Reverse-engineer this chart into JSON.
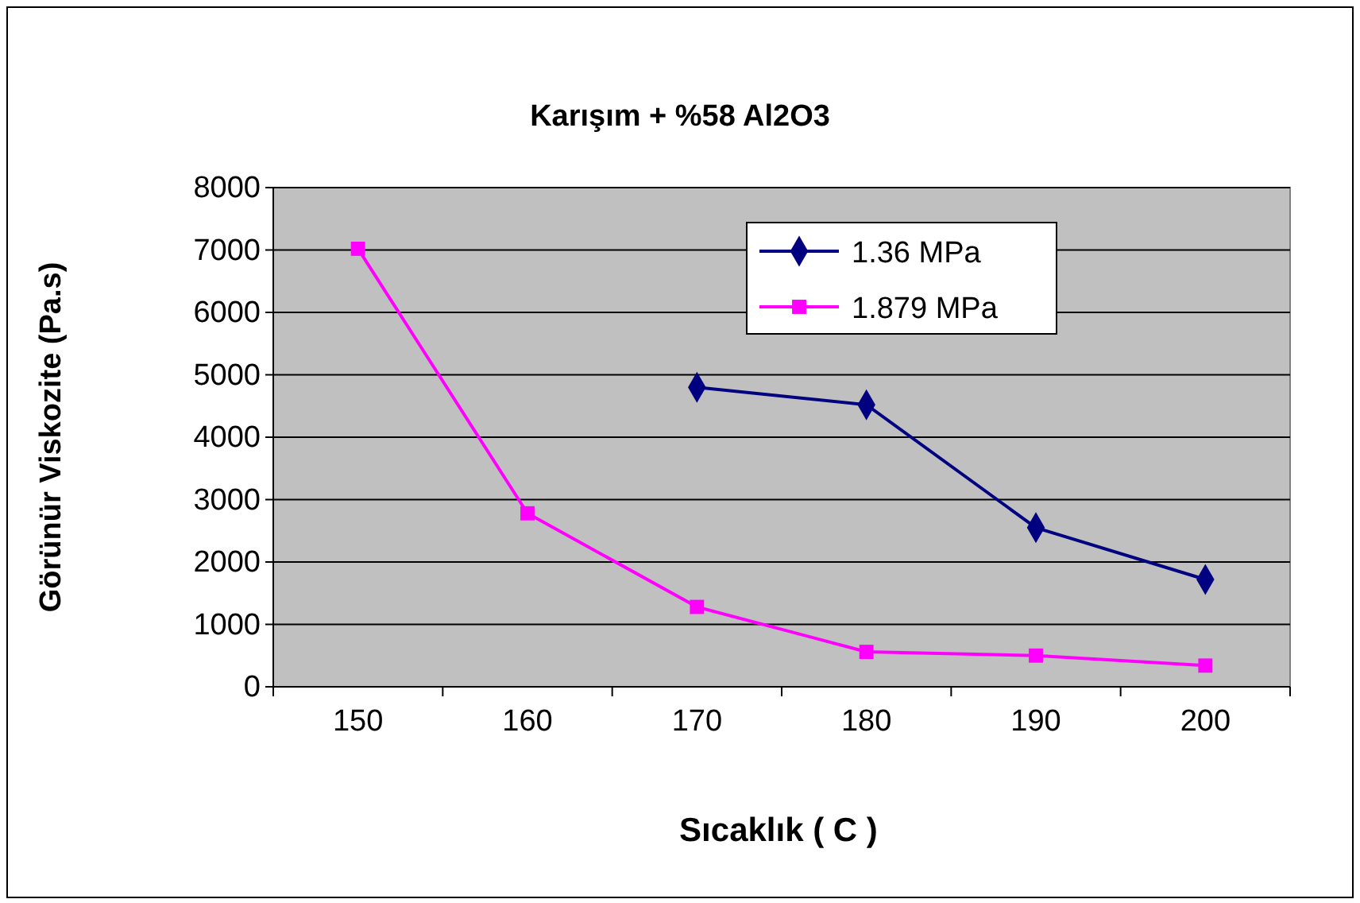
{
  "chart_data": {
    "type": "line",
    "title": "Karışım + %58 Al2O3",
    "xlabel": "Sıcaklık ( C )",
    "ylabel": "Görünür Viskozite (Pa.s)",
    "categories": [
      "150",
      "160",
      "170",
      "180",
      "190",
      "200"
    ],
    "series": [
      {
        "name": "1.36 MPa",
        "color": "#000080",
        "marker": "diamond",
        "values": [
          null,
          null,
          4800,
          4520,
          2550,
          1720
        ]
      },
      {
        "name": "1.879 MPa",
        "color": "#ff00ff",
        "marker": "square",
        "values": [
          7020,
          2780,
          1280,
          560,
          500,
          340
        ]
      }
    ],
    "ylim": [
      0,
      8000
    ],
    "yticks": [
      0,
      1000,
      2000,
      3000,
      4000,
      5000,
      6000,
      7000,
      8000
    ],
    "grid": "y",
    "legend": "top right",
    "line_style": "solid"
  }
}
